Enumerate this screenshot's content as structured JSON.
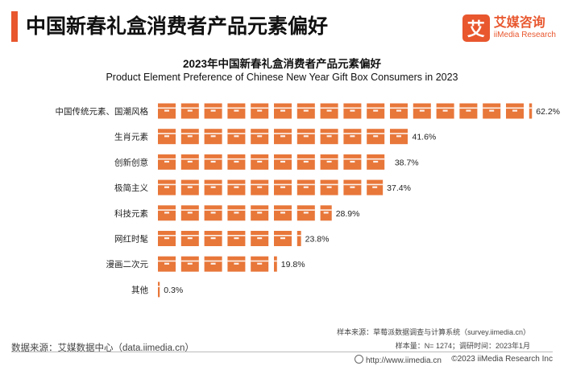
{
  "header": {
    "title": "中国新春礼盒消费者产品元素偏好"
  },
  "logo": {
    "mark": "艾",
    "name_cn": "艾媒咨询",
    "name_en": "iiMedia Research"
  },
  "chart_data": {
    "type": "bar",
    "orientation": "horizontal",
    "title": "2023年中国新春礼盒消费者产品元素偏好",
    "subtitle": "Product Element Preference of Chinese New Year Gift Box Consumers in 2023",
    "categories": [
      "中国传统元素、国潮风格",
      "生肖元素",
      "创新创意",
      "极简主义",
      "科技元素",
      "网红时髦",
      "漫画二次元",
      "其他"
    ],
    "values": [
      62.2,
      41.6,
      38.7,
      37.4,
      28.9,
      23.8,
      19.8,
      0.3
    ],
    "value_labels": [
      "62.2%",
      "41.6%",
      "38.7%",
      "37.4%",
      "28.9%",
      "23.8%",
      "19.8%",
      "0.3%"
    ],
    "unit": "%",
    "mark": "box-icon",
    "color": "#e8773a",
    "grid": false,
    "legend": "none"
  },
  "footer": {
    "source": "数据来源：艾媒数据中心（data.iimedia.cn）",
    "sample_source": "样本来源：草莓派数据调查与计算系统（survey.iimedia.cn）",
    "sample_info": "样本量：N= 1274；调研时间：2023年1月",
    "url": "http://www.iimedia.cn",
    "copyright": "©2023  iiMedia Research  Inc"
  }
}
